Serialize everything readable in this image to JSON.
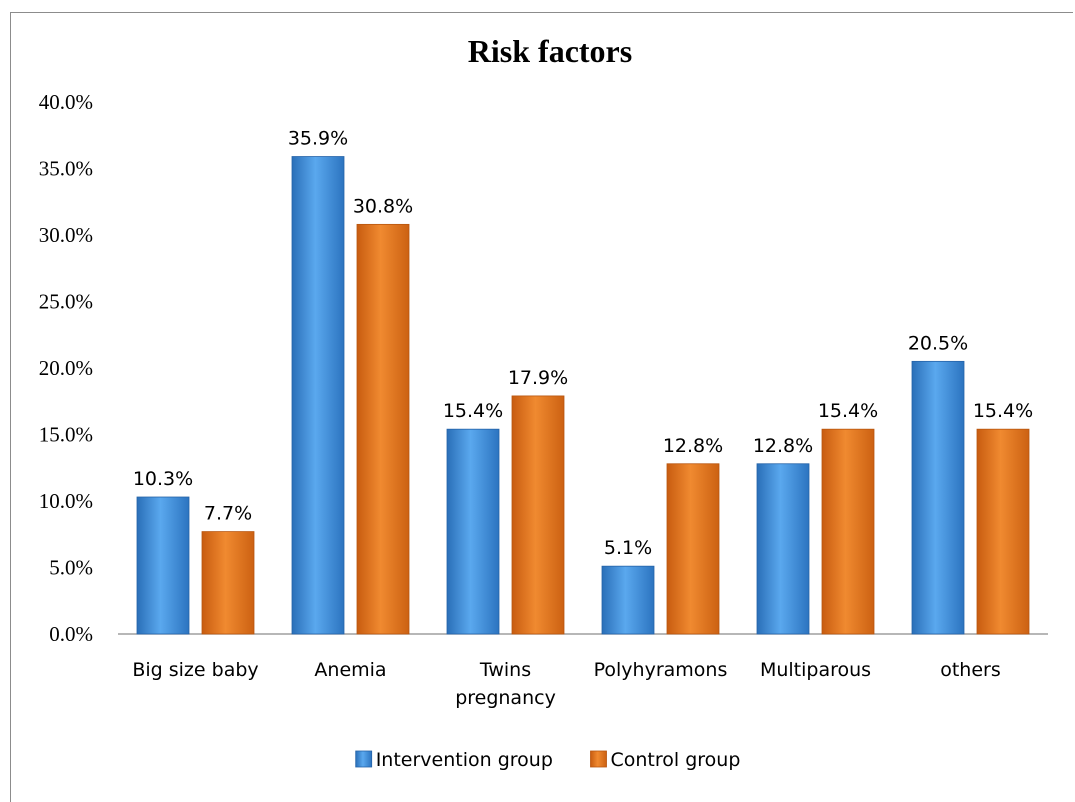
{
  "chart_data": {
    "type": "bar",
    "title": "Risk factors",
    "categories": [
      [
        "Big size baby"
      ],
      [
        "Anemia"
      ],
      [
        "Twins",
        "pregnancy"
      ],
      [
        "Polyhyramons"
      ],
      [
        "Multiparous"
      ],
      [
        "others"
      ]
    ],
    "series": [
      {
        "name": "Intervention group",
        "values": [
          10.3,
          35.9,
          15.4,
          5.1,
          12.8,
          20.5
        ],
        "labels": [
          "10.3%",
          "35.9%",
          "15.4%",
          "5.1%",
          "12.8%",
          "20.5%"
        ],
        "color": "#3f8fd8"
      },
      {
        "name": "Control group",
        "values": [
          7.7,
          30.8,
          17.9,
          12.8,
          15.4,
          15.4
        ],
        "labels": [
          "7.7%",
          "30.8%",
          "17.9%",
          "12.8%",
          "15.4%",
          "15.4%"
        ],
        "color": "#e8761c"
      }
    ],
    "ylim": [
      0,
      40
    ],
    "yticks": [
      "0.0%",
      "5.0%",
      "10.0%",
      "15.0%",
      "20.0%",
      "25.0%",
      "30.0%",
      "35.0%",
      "40.0%"
    ],
    "grid": false,
    "legend": "bottom"
  }
}
